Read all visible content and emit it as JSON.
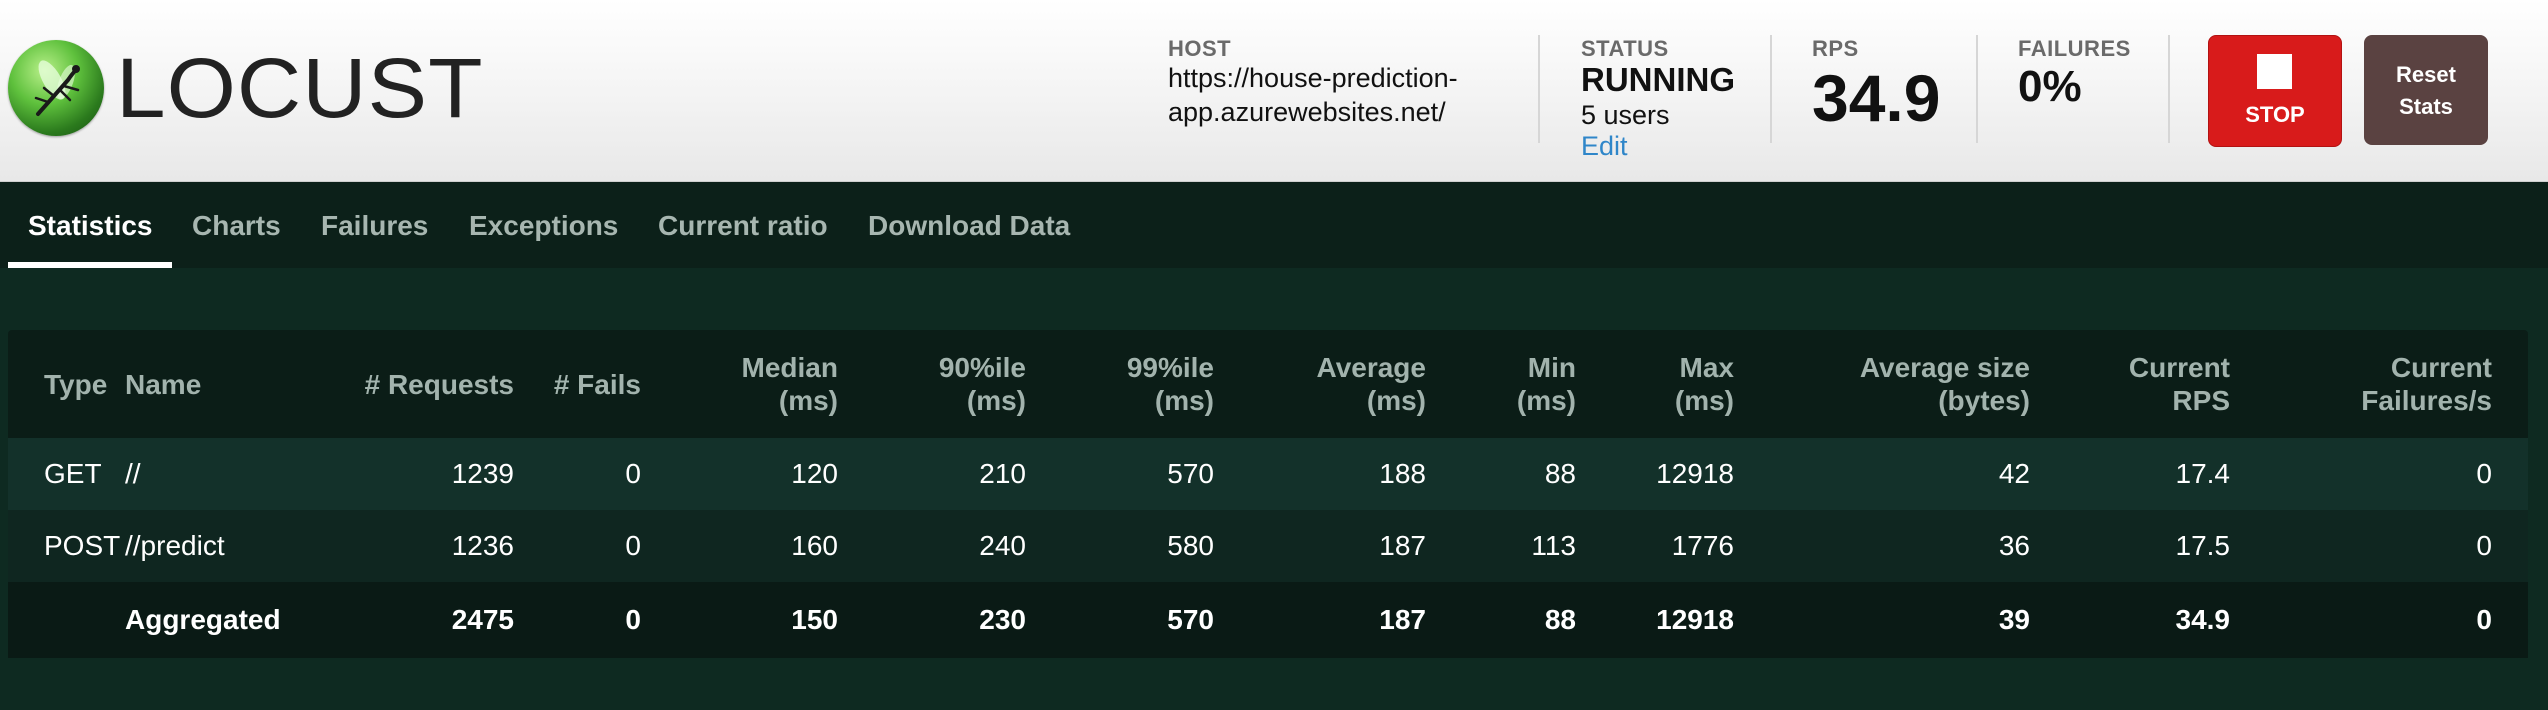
{
  "header": {
    "brand": "LOCUST",
    "host": {
      "label": "HOST",
      "value": "https://house-prediction-app.azurewebsites.net/"
    },
    "status": {
      "label": "STATUS",
      "value": "RUNNING",
      "users": "5 users",
      "edit": "Edit"
    },
    "rps": {
      "label": "RPS",
      "value": "34.9"
    },
    "failures": {
      "label": "FAILURES",
      "value": "0%"
    },
    "stop_label": "STOP",
    "reset_label_line1": "Reset",
    "reset_label_line2": "Stats"
  },
  "tabs": [
    {
      "label": "Statistics",
      "active": true
    },
    {
      "label": "Charts"
    },
    {
      "label": "Failures"
    },
    {
      "label": "Exceptions"
    },
    {
      "label": "Current ratio"
    },
    {
      "label": "Download Data"
    }
  ],
  "table": {
    "headers": [
      {
        "line1": "Type",
        "line2": ""
      },
      {
        "line1": "Name",
        "line2": ""
      },
      {
        "line1": "# Requests",
        "line2": ""
      },
      {
        "line1": "# Fails",
        "line2": ""
      },
      {
        "line1": "Median",
        "line2": "(ms)"
      },
      {
        "line1": "90%ile",
        "line2": "(ms)"
      },
      {
        "line1": "99%ile",
        "line2": "(ms)"
      },
      {
        "line1": "Average",
        "line2": "(ms)"
      },
      {
        "line1": "Min",
        "line2": "(ms)"
      },
      {
        "line1": "Max",
        "line2": "(ms)"
      },
      {
        "line1": "Average size",
        "line2": "(bytes)"
      },
      {
        "line1": "Current",
        "line2": "RPS"
      },
      {
        "line1": "Current",
        "line2": "Failures/s"
      }
    ],
    "rows": [
      [
        "GET",
        "//",
        "1239",
        "0",
        "120",
        "210",
        "570",
        "188",
        "88",
        "12918",
        "42",
        "17.4",
        "0"
      ],
      [
        "POST",
        "//predict",
        "1236",
        "0",
        "160",
        "240",
        "580",
        "187",
        "113",
        "1776",
        "36",
        "17.5",
        "0"
      ],
      [
        "",
        "Aggregated",
        "2475",
        "0",
        "150",
        "230",
        "570",
        "187",
        "88",
        "12918",
        "39",
        "34.9",
        "0"
      ]
    ]
  }
}
